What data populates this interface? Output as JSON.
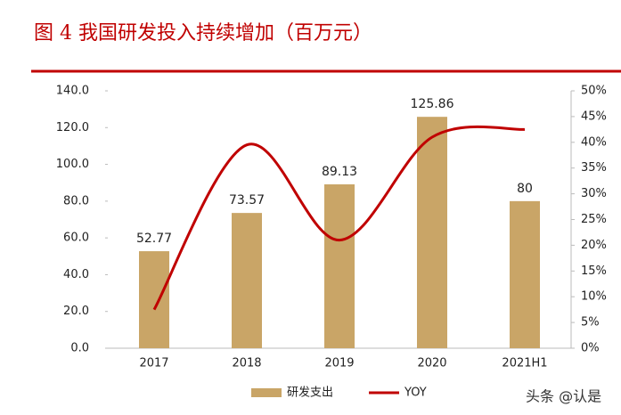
{
  "chart_data": {
    "type": "combo",
    "title": "图 4 我国研发投入持续增加（百万元）",
    "categories": [
      "2017",
      "2018",
      "2019",
      "2020",
      "2021H1"
    ],
    "series": [
      {
        "name": "研发支出",
        "type": "bar",
        "color": "#c9a567",
        "values": [
          52.77,
          73.57,
          89.13,
          125.86,
          80
        ]
      },
      {
        "name": "YOY",
        "type": "line",
        "axis": "y2",
        "color": "#c00000",
        "values": [
          7.5,
          39.5,
          21,
          41,
          42.5
        ]
      }
    ],
    "ylim": [
      0,
      140
    ],
    "yticks": [
      {
        "value": 0,
        "label": "0.0"
      },
      {
        "value": 20,
        "label": "20.0"
      },
      {
        "value": 40,
        "label": "40.0"
      },
      {
        "value": 60,
        "label": "60.0"
      },
      {
        "value": 80,
        "label": "80.0"
      },
      {
        "value": 100,
        "label": "100.0"
      },
      {
        "value": 120,
        "label": "120.0"
      },
      {
        "value": 140,
        "label": "140.0"
      }
    ],
    "y2lim": [
      0,
      50
    ],
    "y2ticks": [
      {
        "value": 0,
        "label": "0%"
      },
      {
        "value": 5,
        "label": "5%"
      },
      {
        "value": 10,
        "label": "10%"
      },
      {
        "value": 15,
        "label": "15%"
      },
      {
        "value": 20,
        "label": "20%"
      },
      {
        "value": 25,
        "label": "25%"
      },
      {
        "value": 30,
        "label": "30%"
      },
      {
        "value": 35,
        "label": "35%"
      },
      {
        "value": 40,
        "label": "40%"
      },
      {
        "value": 45,
        "label": "45%"
      },
      {
        "value": 50,
        "label": "50%"
      }
    ],
    "legend": "bottom",
    "watermark": "头条 @认是"
  }
}
